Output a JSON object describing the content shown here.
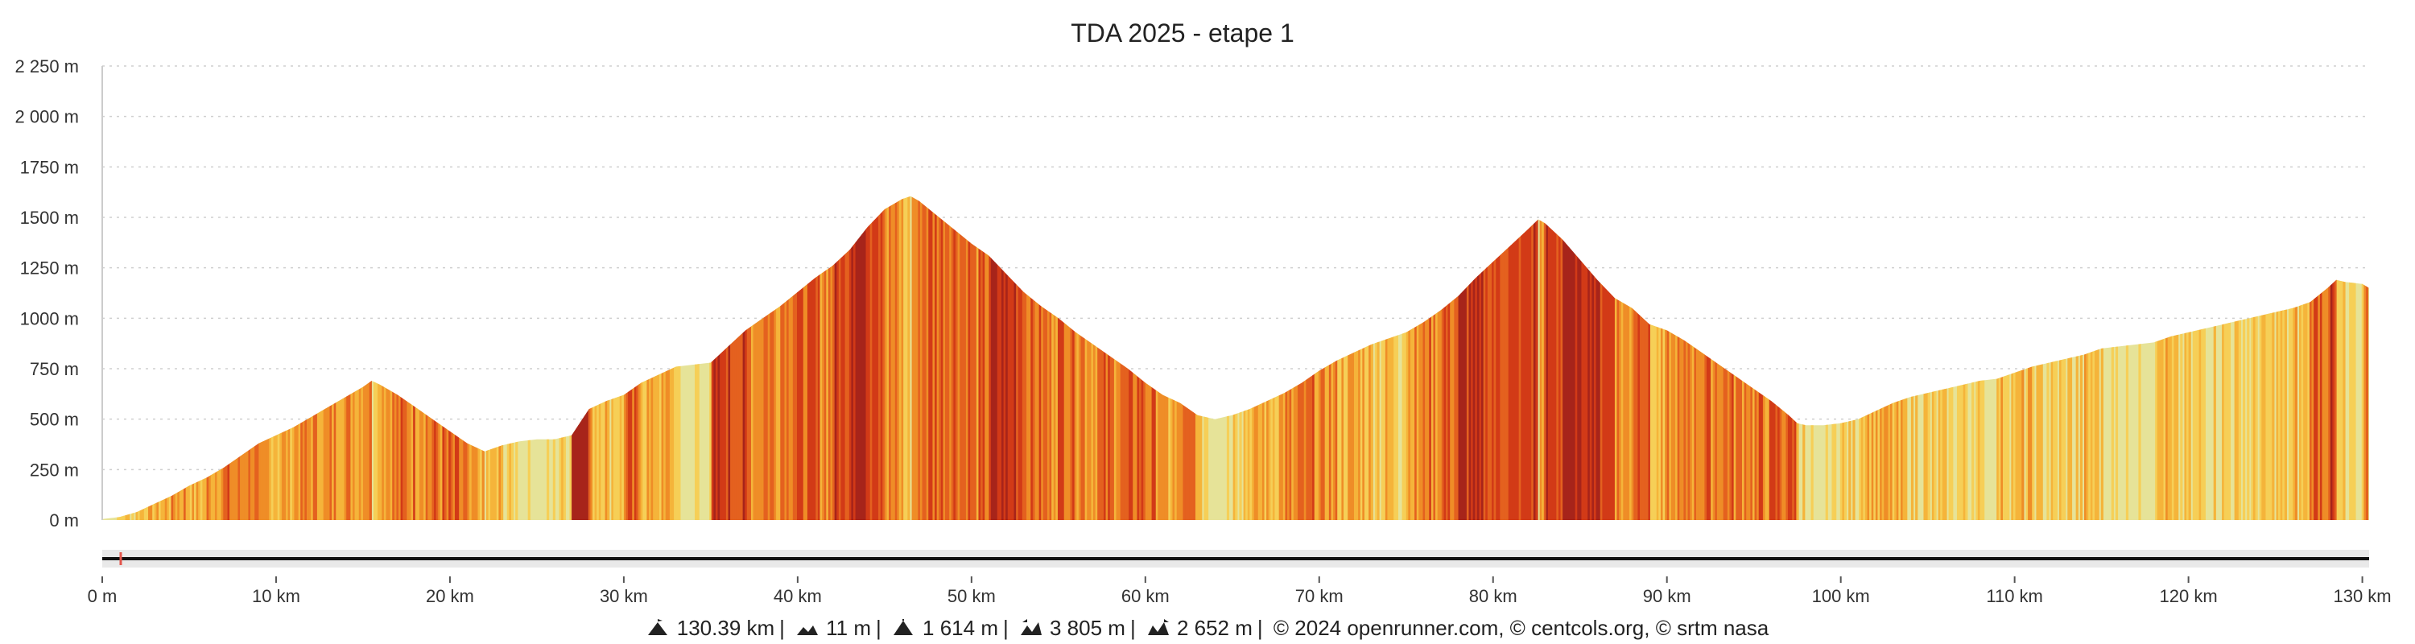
{
  "colors": {
    "flat": "#e6e398",
    "gentle": "#f6cf57",
    "moderate": "#f5b43a",
    "steep": "#ef8d27",
    "steeper": "#e4611f",
    "steepest": "#d23a17",
    "extreme": "#a7241a",
    "navigator_track": "#111111",
    "navigator_bg": "#e9e9e9",
    "navigator_handle": "#e2554c"
  },
  "chart_data": {
    "type": "area",
    "title": "TDA 2025 - etape 1",
    "xlabel": "",
    "ylabel": "",
    "xlim": [
      0,
      130.39
    ],
    "ylim": [
      0,
      2250
    ],
    "y_ticks": [
      0,
      250,
      500,
      750,
      1000,
      1250,
      1500,
      1750,
      2000,
      2250
    ],
    "y_tick_labels": [
      "0 m",
      "250 m",
      "500 m",
      "750 m",
      "1000 m",
      "1250 m",
      "1500 m",
      "1750 m",
      "2 000 m",
      "2 250 m"
    ],
    "x_ticks": [
      0,
      10,
      20,
      30,
      40,
      50,
      60,
      70,
      80,
      90,
      100,
      110,
      120,
      130
    ],
    "x_tick_labels": [
      "0 m",
      "10 km",
      "20 km",
      "30 km",
      "40 km",
      "50 km",
      "60 km",
      "70 km",
      "80 km",
      "90 km",
      "100 km",
      "110 km",
      "120 km",
      "130 km"
    ],
    "grid": true,
    "coloring": "slope gradient",
    "series": [
      {
        "x": [
          0,
          1,
          2,
          3,
          4,
          5,
          6,
          7,
          8,
          9,
          10,
          11,
          12,
          13,
          14,
          15,
          15.5,
          16,
          17,
          18,
          19,
          20,
          21,
          22,
          23,
          24,
          25,
          26,
          27,
          28,
          29,
          30,
          31,
          32,
          33,
          34,
          35,
          36,
          37,
          38,
          39,
          40,
          41,
          42,
          43,
          44,
          45,
          46,
          46.5,
          47,
          48,
          49,
          50,
          51,
          52,
          53,
          54,
          55,
          56,
          57,
          58,
          59,
          60,
          61,
          62,
          63,
          64,
          65,
          66,
          67,
          68,
          69,
          70,
          71,
          72,
          73,
          74,
          75,
          76,
          77,
          78,
          79,
          80,
          81,
          82,
          82.6,
          83,
          84,
          85,
          86,
          87,
          88,
          89,
          90,
          91,
          92,
          93,
          94,
          95,
          96,
          97,
          97.5,
          98,
          99,
          100,
          101,
          102,
          103,
          104,
          105,
          106,
          107,
          108,
          109,
          110,
          111,
          112,
          113,
          114,
          115,
          116,
          117,
          118,
          119,
          120,
          121,
          122,
          123,
          124,
          125,
          126,
          127,
          128,
          128.5,
          129,
          130,
          130.39
        ],
        "y": [
          5,
          15,
          40,
          80,
          120,
          170,
          210,
          260,
          320,
          380,
          420,
          460,
          510,
          560,
          610,
          660,
          690,
          670,
          620,
          560,
          500,
          440,
          380,
          340,
          370,
          390,
          400,
          400,
          420,
          550,
          590,
          620,
          680,
          720,
          760,
          770,
          780,
          860,
          940,
          1000,
          1060,
          1130,
          1200,
          1260,
          1340,
          1450,
          1540,
          1590,
          1605,
          1580,
          1510,
          1440,
          1370,
          1310,
          1220,
          1130,
          1060,
          1000,
          930,
          870,
          810,
          750,
          680,
          620,
          580,
          520,
          500,
          520,
          550,
          590,
          630,
          680,
          740,
          790,
          830,
          870,
          900,
          930,
          980,
          1040,
          1110,
          1200,
          1280,
          1360,
          1440,
          1490,
          1470,
          1390,
          1290,
          1190,
          1100,
          1050,
          970,
          940,
          890,
          830,
          770,
          710,
          650,
          590,
          520,
          480,
          470,
          470,
          480,
          500,
          540,
          580,
          610,
          630,
          650,
          670,
          690,
          700,
          730,
          760,
          780,
          800,
          820,
          850,
          860,
          870,
          880,
          910,
          930,
          950,
          970,
          990,
          1010,
          1030,
          1050,
          1080,
          1150,
          1190,
          1180,
          1170,
          1150
        ]
      }
    ]
  },
  "footer": {
    "distance": "130.39 km",
    "min_elevation": "11 m",
    "max_elevation": "1 614 m",
    "elevation_gain": "3 805 m",
    "elevation_loss": "2 652 m",
    "credits": "© 2024 openrunner.com, © centcols.org, © srtm nasa"
  }
}
